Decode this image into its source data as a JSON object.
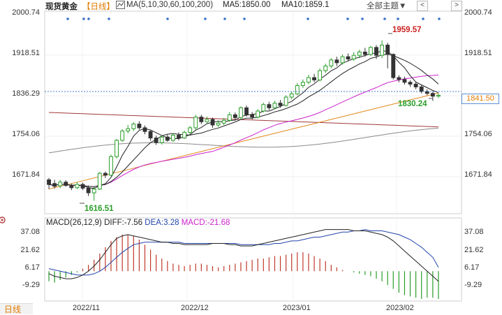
{
  "header": {
    "instrument": "现货黄金",
    "period": "【日线】",
    "ma_label": "MA(5,10,30,60,100,200)",
    "ma5_label": "MA5:1850.00",
    "ma10_label": "MA10:1859.1",
    "theme_button": "全部主题▼",
    "nav_prev": "<",
    "nav_next": ">"
  },
  "price_axis": {
    "left_ticks": [
      "2000.74",
      "1918.51",
      "1836.29",
      "1754.06",
      "1671.84"
    ],
    "right_ticks": [
      "2000.74",
      "1918.51",
      "1754.06",
      "1671.84"
    ],
    "current_price_tag": "1841.50"
  },
  "annotations": {
    "high_label": "1959.57",
    "low_label": "1616.51",
    "recent_low_label": "1830.24"
  },
  "macd": {
    "header_prefix": "MACD(26,12,9)",
    "diff": "DIFF:-7.56",
    "dea": "DEA:3.28",
    "macd": "MACD:-21.68",
    "ticks": [
      "37.08",
      "21.62",
      "6.17",
      "-9.29"
    ]
  },
  "time_axis": [
    "2022/11",
    "2022/12",
    "2023/01",
    "2023/02"
  ],
  "period_tab": "日线",
  "colors": {
    "up": "#2a9d2a",
    "down": "#333333",
    "ma5": "#222222",
    "ma10": "#222222",
    "ma30": "#cc22cc",
    "ma60": "#e08a1e",
    "ma100": "#8a8a8a",
    "ma200": "#a23a3a",
    "high_label": "#cc2222",
    "low_label": "#2a9d2a",
    "macd_pos": "#c0392b",
    "macd_neg": "#2a9d2a",
    "dea_line": "#2244aa",
    "diff_line": "#222222"
  },
  "chart_data": {
    "type": "candlestick",
    "y_range": [
      1590,
      2020
    ],
    "candles": [
      [
        1660,
        1650,
        1664,
        1640
      ],
      [
        1652,
        1646,
        1660,
        1641
      ],
      [
        1647,
        1655,
        1660,
        1642
      ],
      [
        1655,
        1648,
        1659,
        1645
      ],
      [
        1648,
        1643,
        1652,
        1638
      ],
      [
        1643,
        1650,
        1655,
        1640
      ],
      [
        1650,
        1642,
        1654,
        1638
      ],
      [
        1642,
        1632,
        1648,
        1625
      ],
      [
        1632,
        1640,
        1645,
        1615
      ],
      [
        1640,
        1674,
        1677,
        1638
      ],
      [
        1674,
        1670,
        1678,
        1664
      ],
      [
        1670,
        1710,
        1714,
        1668
      ],
      [
        1710,
        1745,
        1748,
        1706
      ],
      [
        1745,
        1765,
        1769,
        1742
      ],
      [
        1765,
        1770,
        1778,
        1760
      ],
      [
        1770,
        1780,
        1784,
        1765
      ],
      [
        1780,
        1772,
        1786,
        1768
      ],
      [
        1772,
        1764,
        1777,
        1758
      ],
      [
        1764,
        1750,
        1768,
        1744
      ],
      [
        1750,
        1740,
        1755,
        1735
      ],
      [
        1740,
        1752,
        1756,
        1736
      ],
      [
        1752,
        1745,
        1757,
        1742
      ],
      [
        1745,
        1756,
        1760,
        1742
      ],
      [
        1756,
        1750,
        1762,
        1745
      ],
      [
        1750,
        1762,
        1766,
        1748
      ],
      [
        1762,
        1772,
        1776,
        1758
      ],
      [
        1772,
        1795,
        1800,
        1768
      ],
      [
        1795,
        1785,
        1800,
        1780
      ],
      [
        1785,
        1790,
        1796,
        1782
      ],
      [
        1790,
        1778,
        1794,
        1772
      ],
      [
        1778,
        1782,
        1788,
        1774
      ],
      [
        1782,
        1788,
        1793,
        1778
      ],
      [
        1788,
        1800,
        1806,
        1785
      ],
      [
        1800,
        1794,
        1805,
        1790
      ],
      [
        1794,
        1815,
        1818,
        1790
      ],
      [
        1815,
        1800,
        1820,
        1796
      ],
      [
        1800,
        1795,
        1806,
        1790
      ],
      [
        1795,
        1808,
        1812,
        1792
      ],
      [
        1808,
        1822,
        1826,
        1805
      ],
      [
        1822,
        1815,
        1828,
        1810
      ],
      [
        1815,
        1825,
        1830,
        1812
      ],
      [
        1825,
        1820,
        1832,
        1815
      ],
      [
        1820,
        1838,
        1842,
        1818
      ],
      [
        1838,
        1845,
        1850,
        1833
      ],
      [
        1845,
        1863,
        1868,
        1842
      ],
      [
        1863,
        1870,
        1876,
        1858
      ],
      [
        1870,
        1880,
        1886,
        1866
      ],
      [
        1880,
        1875,
        1888,
        1870
      ],
      [
        1875,
        1895,
        1900,
        1872
      ],
      [
        1895,
        1905,
        1910,
        1890
      ],
      [
        1905,
        1918,
        1922,
        1900
      ],
      [
        1918,
        1912,
        1925,
        1905
      ],
      [
        1912,
        1925,
        1930,
        1908
      ],
      [
        1925,
        1920,
        1932,
        1915
      ],
      [
        1920,
        1928,
        1935,
        1916
      ],
      [
        1928,
        1935,
        1940,
        1922
      ],
      [
        1935,
        1930,
        1944,
        1925
      ],
      [
        1930,
        1945,
        1948,
        1926
      ],
      [
        1945,
        1928,
        1950,
        1920
      ],
      [
        1928,
        1950,
        1960,
        1922
      ],
      [
        1950,
        1930,
        1955,
        1900
      ],
      [
        1930,
        1880,
        1932,
        1876
      ],
      [
        1880,
        1876,
        1885,
        1870
      ],
      [
        1876,
        1870,
        1882,
        1865
      ],
      [
        1870,
        1866,
        1874,
        1860
      ],
      [
        1866,
        1860,
        1870,
        1855
      ],
      [
        1860,
        1850,
        1864,
        1846
      ],
      [
        1850,
        1846,
        1855,
        1842
      ],
      [
        1846,
        1840,
        1850,
        1830
      ],
      [
        1840,
        1842,
        1846,
        1836
      ]
    ],
    "macd_range": [
      -22,
      40
    ],
    "macd_hist": [
      -8,
      -9,
      -7,
      -5,
      -3,
      -1,
      2,
      5,
      9,
      14,
      19,
      24,
      27,
      29,
      29,
      28,
      25,
      21,
      17,
      13,
      10,
      8,
      6,
      5,
      4,
      5,
      6,
      6,
      5,
      4,
      3,
      4,
      5,
      6,
      7,
      8,
      9,
      10,
      10,
      11,
      12,
      12,
      13,
      14,
      15,
      15,
      14,
      12,
      10,
      8,
      5,
      3,
      1,
      0,
      -1,
      -2,
      -3,
      -4,
      -6,
      -8,
      -11,
      -14,
      -17,
      -19,
      -20,
      -21,
      -22,
      -21,
      -21,
      -22
    ],
    "diff_line": [
      -2,
      -4,
      -5,
      -6,
      -6,
      -5,
      -3,
      0,
      4,
      9,
      15,
      21,
      26,
      28,
      29,
      28,
      27,
      26,
      25,
      24,
      23,
      23,
      22,
      22,
      21,
      21,
      21,
      21,
      21,
      22,
      22,
      22,
      21,
      21,
      20,
      20,
      20,
      21,
      22,
      23,
      24,
      25,
      26,
      27,
      28,
      29,
      30,
      31,
      32,
      33,
      33,
      33,
      33,
      33,
      32,
      32,
      32,
      31,
      30,
      29,
      27,
      24,
      20,
      16,
      12,
      8,
      4,
      0,
      -4,
      -8
    ],
    "dea_line": [
      2,
      1,
      0,
      -1,
      -2,
      -3,
      -3,
      -3,
      -2,
      0,
      3,
      7,
      11,
      15,
      18,
      21,
      22,
      23,
      23,
      23,
      23,
      23,
      23,
      23,
      22,
      22,
      22,
      22,
      22,
      22,
      22,
      22,
      22,
      22,
      21,
      21,
      21,
      21,
      21,
      21,
      22,
      22,
      23,
      24,
      24,
      25,
      26,
      27,
      27,
      28,
      29,
      30,
      31,
      31,
      32,
      32,
      33,
      32,
      32,
      32,
      31,
      30,
      29,
      27,
      25,
      22,
      19,
      15,
      11,
      3
    ]
  }
}
